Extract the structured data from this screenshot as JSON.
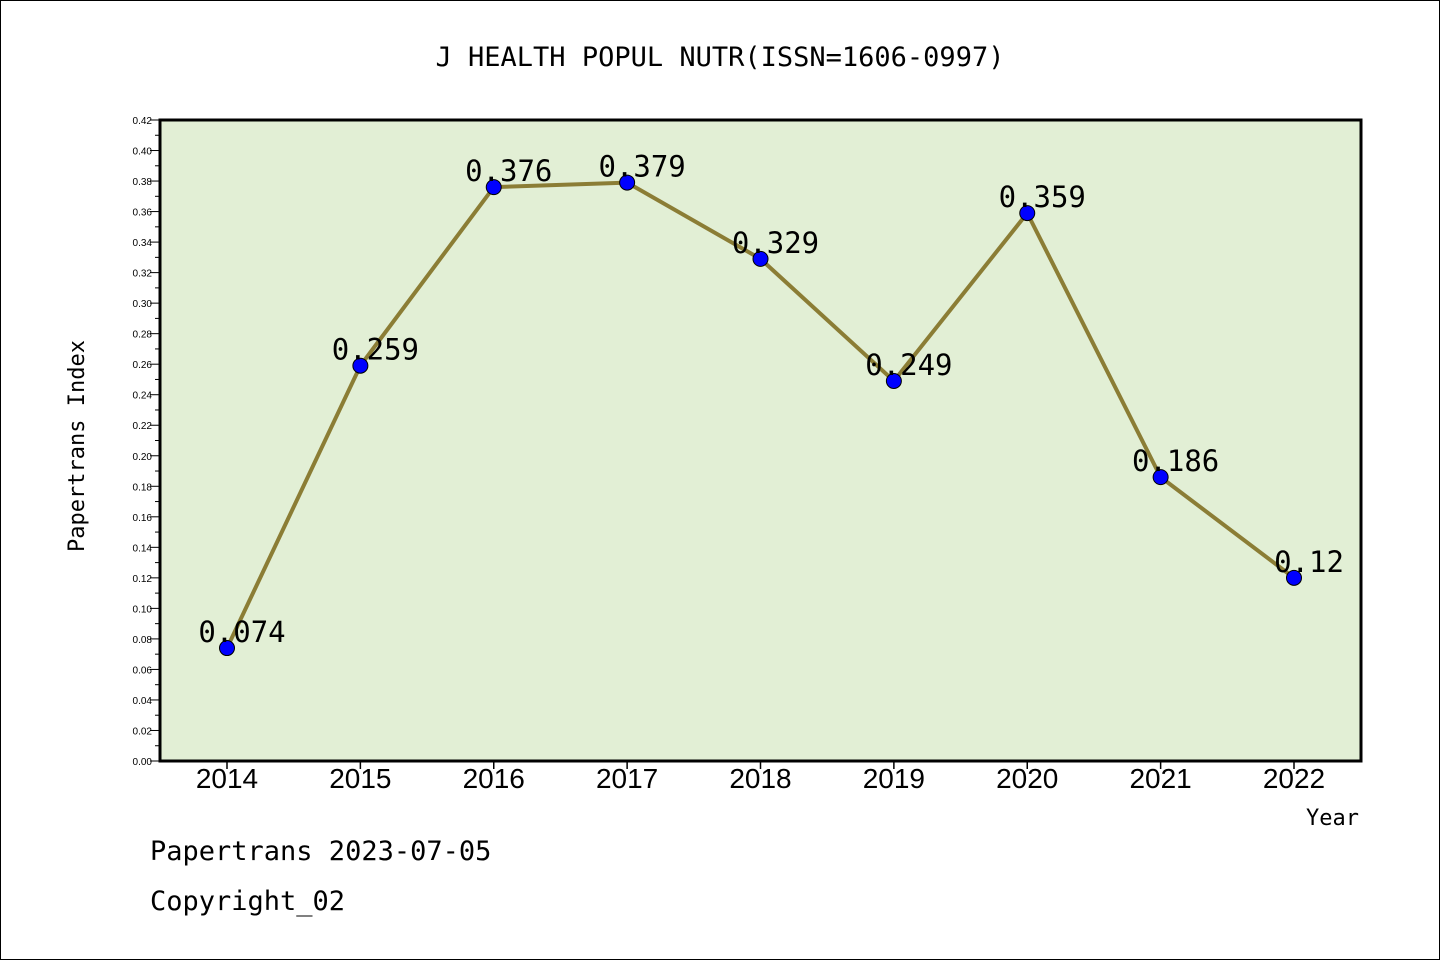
{
  "chart_data": {
    "type": "line",
    "title": "J HEALTH POPUL NUTR(ISSN=1606-0997)",
    "xlabel": "Year",
    "ylabel": "Papertrans Index",
    "categories": [
      "2014",
      "2015",
      "2016",
      "2017",
      "2018",
      "2019",
      "2020",
      "2021",
      "2022"
    ],
    "series": [
      {
        "values": [
          0.074,
          0.259,
          0.376,
          0.379,
          0.329,
          0.249,
          0.359,
          0.186,
          0.12
        ],
        "data_labels": [
          "0.074",
          "0.259",
          "0.376",
          "0.379",
          "0.329",
          "0.249",
          "0.359",
          "0.186",
          "0.12"
        ]
      }
    ],
    "ylim": [
      0,
      0.42
    ],
    "yticks": [
      "0.00",
      "0.02",
      "0.04",
      "0.06",
      "0.08",
      "0.10",
      "0.12",
      "0.14",
      "0.16",
      "0.18",
      "0.20",
      "0.22",
      "0.24",
      "0.26",
      "0.28",
      "0.30",
      "0.32",
      "0.34",
      "0.36",
      "0.38",
      "0.40",
      "0.42"
    ],
    "grid": false,
    "colors": {
      "plot_background": "#e2efd5",
      "line": "#8b7d35",
      "marker": "#0000ff"
    }
  },
  "footer": {
    "date_line": "Papertrans 2023-07-05",
    "copyright": "Copyright_02"
  }
}
